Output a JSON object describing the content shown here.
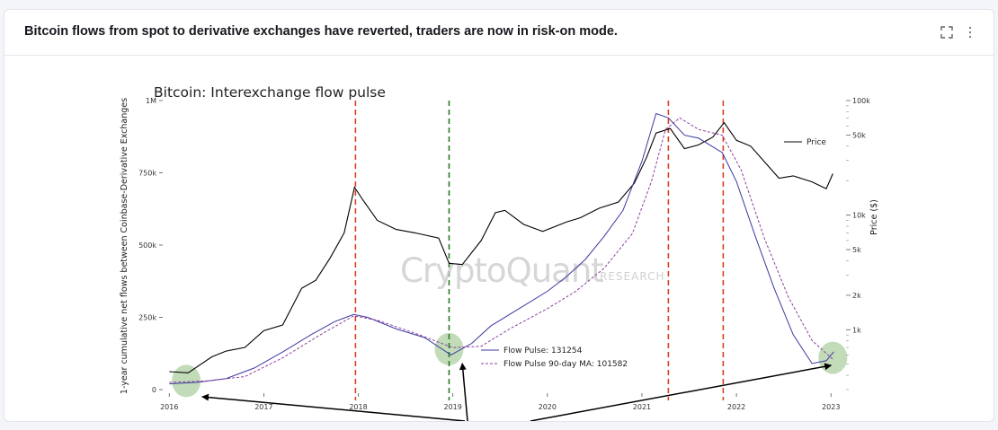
{
  "card": {
    "title": "Bitcoin flows from spot to derivative exchanges have reverted, traders are now in risk-on mode.",
    "expand_icon": "expand-icon",
    "more_icon": "more-vertical-icon"
  },
  "chart_data": {
    "type": "line",
    "title": "Bitcoin: Interexchange flow pulse",
    "ylabel": "1-year cumulative net flows between Coinbase-Derivative Exchanges",
    "y2label": "Price ($)",
    "xlabel": "",
    "watermark": "CryptoQuant",
    "watermark_sub": "RESEARCH",
    "xlim": [
      2015.95,
      2023.15
    ],
    "ylim": [
      0,
      1000000
    ],
    "y2lim_log": [
      300,
      100000
    ],
    "x_ticks": [
      "2016",
      "2017",
      "2018",
      "2019",
      "2020",
      "2021",
      "2022",
      "2023"
    ],
    "y_ticks": [
      {
        "value": 0,
        "label": "0"
      },
      {
        "value": 250000,
        "label": "250k"
      },
      {
        "value": 500000,
        "label": "500k"
      },
      {
        "value": 750000,
        "label": "750k"
      },
      {
        "value": 1000000,
        "label": "1M"
      }
    ],
    "y2_ticks": [
      {
        "value": 1000,
        "label": "1k"
      },
      {
        "value": 2000,
        "label": "2k"
      },
      {
        "value": 5000,
        "label": "5k"
      },
      {
        "value": 10000,
        "label": "10k"
      },
      {
        "value": 50000,
        "label": "50k"
      },
      {
        "value": 100000,
        "label": "100k"
      }
    ],
    "series": [
      {
        "name": "Price",
        "axis": "right",
        "color": "#000000",
        "style": "solid",
        "x": [
          2016.0,
          2016.2,
          2016.45,
          2016.6,
          2016.8,
          2017.0,
          2017.2,
          2017.4,
          2017.55,
          2017.7,
          2017.85,
          2017.96,
          2018.05,
          2018.2,
          2018.4,
          2018.6,
          2018.85,
          2018.96,
          2019.1,
          2019.3,
          2019.45,
          2019.55,
          2019.75,
          2019.95,
          2020.2,
          2020.35,
          2020.55,
          2020.75,
          2020.92,
          2021.05,
          2021.15,
          2021.3,
          2021.45,
          2021.6,
          2021.75,
          2021.87,
          2022.0,
          2022.15,
          2022.3,
          2022.45,
          2022.6,
          2022.8,
          2022.95,
          2023.02
        ],
        "values": [
          430,
          420,
          580,
          650,
          700,
          980,
          1100,
          2300,
          2700,
          4200,
          7000,
          17500,
          13500,
          9000,
          7500,
          7000,
          6300,
          3800,
          3700,
          6000,
          10500,
          11000,
          8300,
          7200,
          8700,
          9500,
          11500,
          13000,
          19000,
          32000,
          52000,
          57000,
          38000,
          41000,
          48000,
          64000,
          45000,
          40000,
          29000,
          21000,
          22000,
          19500,
          17000,
          23000
        ]
      },
      {
        "name": "Flow Pulse: 131254",
        "axis": "left",
        "color": "#3b39a0",
        "style": "solid",
        "x": [
          2016.0,
          2016.3,
          2016.6,
          2016.9,
          2017.2,
          2017.5,
          2017.75,
          2017.95,
          2018.1,
          2018.4,
          2018.7,
          2018.98,
          2019.2,
          2019.4,
          2019.7,
          2020.0,
          2020.2,
          2020.4,
          2020.6,
          2020.8,
          2021.0,
          2021.15,
          2021.28,
          2021.45,
          2021.6,
          2021.85,
          2022.0,
          2022.2,
          2022.4,
          2022.6,
          2022.8,
          2022.95,
          2023.03
        ],
        "values": [
          20000,
          25000,
          38000,
          75000,
          130000,
          190000,
          235000,
          260000,
          250000,
          210000,
          180000,
          120000,
          160000,
          220000,
          280000,
          340000,
          390000,
          450000,
          530000,
          620000,
          790000,
          955000,
          940000,
          880000,
          870000,
          820000,
          720000,
          530000,
          350000,
          190000,
          90000,
          100000,
          131000
        ]
      },
      {
        "name": "Flow Pulse 90-day MA: 101582",
        "axis": "left",
        "color": "#8b3f9e",
        "style": "dashed",
        "x": [
          2016.0,
          2016.4,
          2016.8,
          2017.2,
          2017.6,
          2017.95,
          2018.2,
          2018.6,
          2019.0,
          2019.3,
          2019.6,
          2020.0,
          2020.3,
          2020.6,
          2020.9,
          2021.1,
          2021.25,
          2021.4,
          2021.6,
          2021.85,
          2022.05,
          2022.3,
          2022.55,
          2022.8,
          2023.03
        ],
        "values": [
          25000,
          30000,
          45000,
          110000,
          190000,
          255000,
          240000,
          195000,
          145000,
          150000,
          210000,
          280000,
          340000,
          420000,
          540000,
          720000,
          900000,
          940000,
          900000,
          880000,
          760000,
          520000,
          320000,
          170000,
          101600
        ]
      }
    ],
    "vlines": [
      {
        "x": 2017.97,
        "color": "#d9401f"
      },
      {
        "x": 2018.96,
        "color": "#2c7a26"
      },
      {
        "x": 2021.28,
        "color": "#d9401f"
      },
      {
        "x": 2021.86,
        "color": "#d9401f"
      }
    ],
    "highlight_circles": [
      {
        "x": 2016.18,
        "y": 30000,
        "color": "#8fbf7f"
      },
      {
        "x": 2018.96,
        "y": 140000,
        "color": "#8fbf7f"
      },
      {
        "x": 2023.02,
        "y": 110000,
        "color": "#8fbf7f"
      }
    ],
    "legend": {
      "placement": "center",
      "grid": false
    },
    "price_legend": {
      "placement": "top-right"
    }
  }
}
